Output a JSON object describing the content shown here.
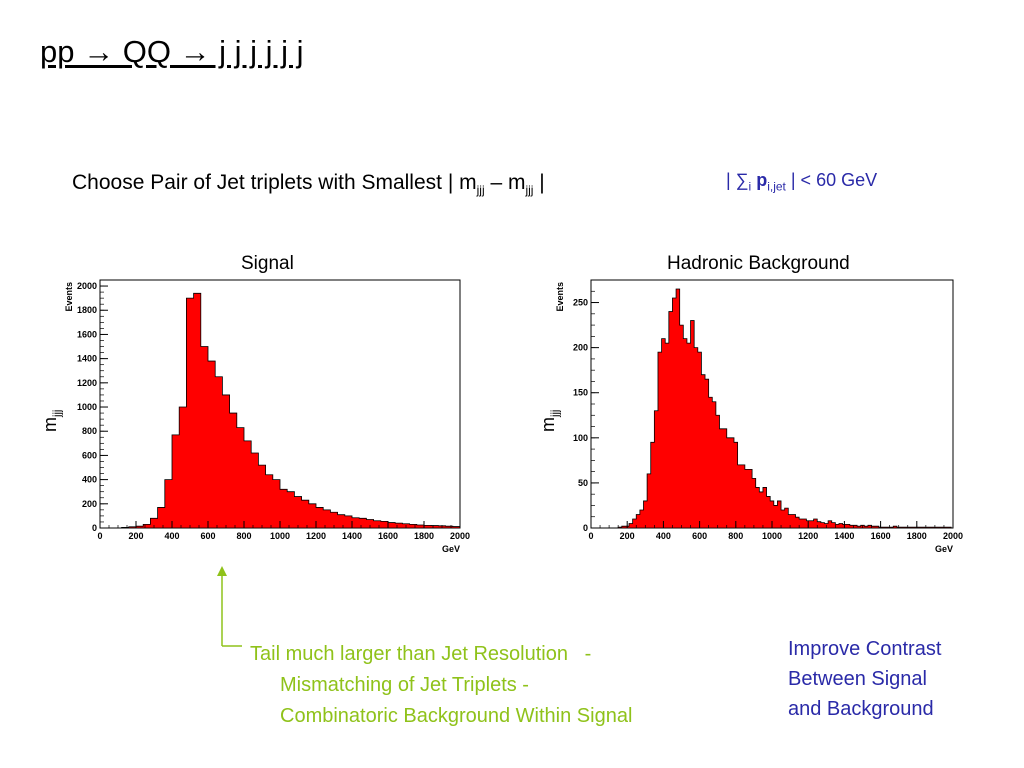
{
  "title": "pp → QQ → j j j j j j",
  "subtitle": {
    "prefix": "Choose Pair of Jet triplets with Smallest | m",
    "sub1": "jjj",
    "mid": " – m",
    "sub2": "jjj",
    "suffix": " |"
  },
  "cut": {
    "prefix": "| ∑",
    "sub1": "i",
    "bold": " p",
    "sub2": "i,jet",
    "suffix": " | <  60 GeV"
  },
  "note": {
    "line1": "Tail much larger than Jet Resolution   -",
    "line2": "Mismatching of Jet Triplets -",
    "line3": "Combinatoric Background Within Signal",
    "color": "#8fc21a"
  },
  "improve": {
    "line1": "Improve Contrast",
    "line2": "Between Signal",
    "line3": "and Background",
    "color": "#2a2aa8"
  },
  "chart_data": [
    {
      "type": "bar",
      "title": "Signal",
      "xlabel": "GeV",
      "ylabel": "Events",
      "side_label": "m",
      "side_label_sub": "jjj",
      "fill_color": "#ff0000",
      "xlim": [
        0,
        2000
      ],
      "ylim": [
        0,
        2050
      ],
      "x_ticks": [
        0,
        200,
        400,
        600,
        800,
        1000,
        1200,
        1400,
        1600,
        1800,
        2000
      ],
      "y_ticks": [
        0,
        200,
        400,
        600,
        800,
        1000,
        1200,
        1400,
        1600,
        1800,
        2000
      ],
      "bin_width": 40,
      "bin_edges_start": 0,
      "values": [
        0,
        0,
        0,
        5,
        10,
        15,
        30,
        80,
        170,
        400,
        770,
        1000,
        1900,
        1940,
        1500,
        1380,
        1250,
        1100,
        950,
        830,
        720,
        620,
        520,
        440,
        400,
        320,
        300,
        260,
        230,
        200,
        170,
        150,
        130,
        110,
        100,
        85,
        80,
        70,
        60,
        55,
        45,
        40,
        35,
        30,
        25,
        22,
        20,
        18,
        15,
        12
      ]
    },
    {
      "type": "bar",
      "title": "Hadronic Background",
      "xlabel": "GeV",
      "ylabel": "Events",
      "side_label": "m",
      "side_label_sub": "jjj",
      "fill_color": "#ff0000",
      "xlim": [
        0,
        2000
      ],
      "ylim": [
        0,
        275
      ],
      "x_ticks": [
        0,
        200,
        400,
        600,
        800,
        1000,
        1200,
        1400,
        1600,
        1800,
        2000
      ],
      "y_ticks": [
        0,
        50,
        100,
        150,
        200,
        250
      ],
      "bin_width": 20,
      "bin_edges_start": 150,
      "values": [
        1,
        2,
        2,
        5,
        10,
        15,
        20,
        30,
        60,
        95,
        130,
        195,
        210,
        205,
        240,
        255,
        265,
        225,
        210,
        205,
        230,
        200,
        195,
        170,
        165,
        145,
        140,
        125,
        110,
        110,
        100,
        100,
        95,
        70,
        70,
        65,
        65,
        55,
        45,
        40,
        45,
        35,
        30,
        25,
        30,
        20,
        22,
        15,
        15,
        12,
        10,
        10,
        8,
        8,
        10,
        7,
        6,
        5,
        8,
        6,
        4,
        5,
        4,
        4,
        3,
        3,
        2,
        3,
        2,
        3,
        2,
        2,
        1,
        1,
        1,
        1,
        2,
        1,
        1,
        1,
        1,
        1,
        1,
        1,
        1,
        1,
        1,
        1,
        1,
        1,
        1,
        1
      ]
    }
  ]
}
